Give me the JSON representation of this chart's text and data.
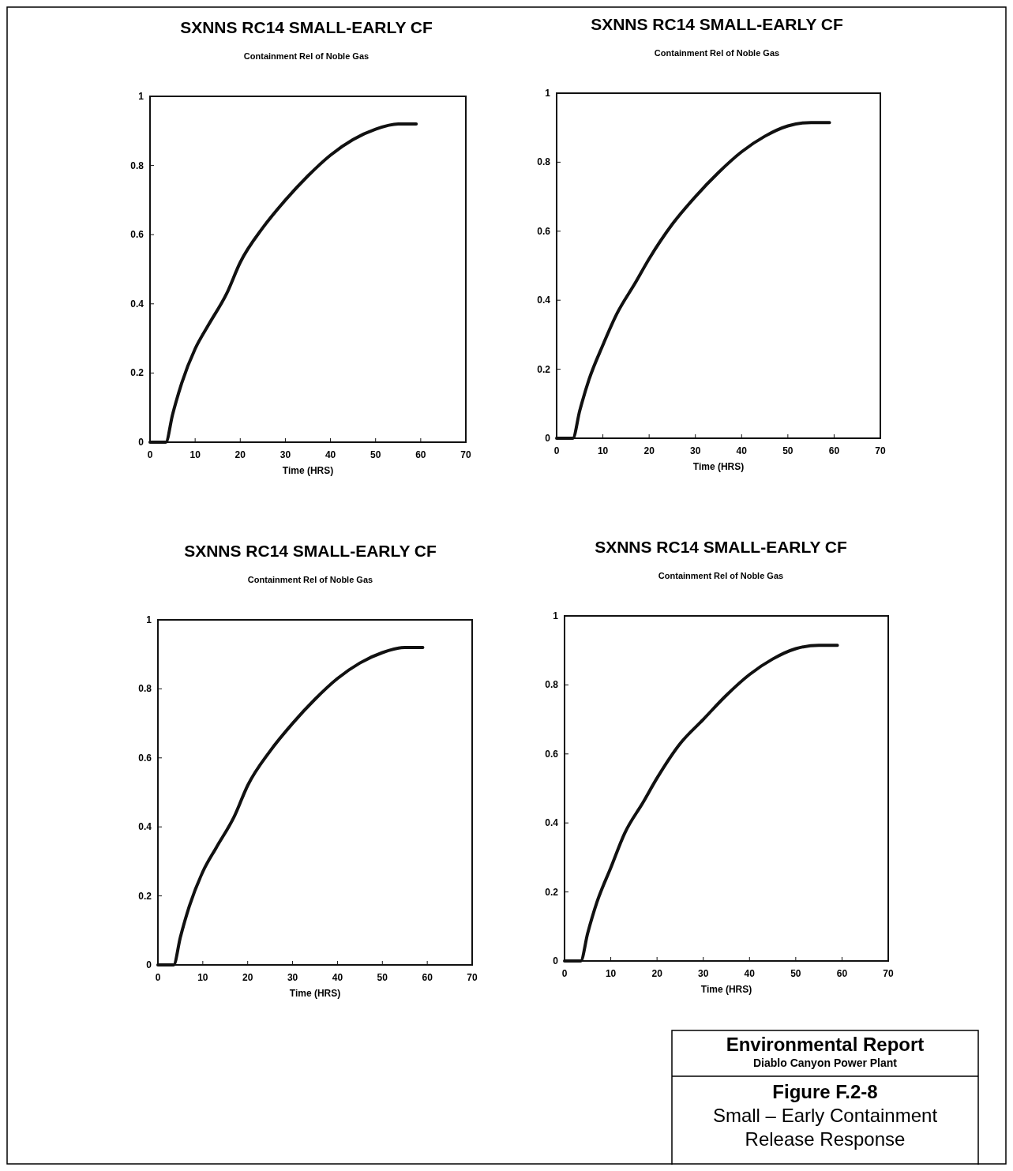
{
  "chart_data": [
    {
      "type": "line",
      "title": "SXNNS RC14 SMALL-EARLY CF",
      "subtitle": "Containment Rel of Noble Gas",
      "xlabel": "Time (HRS)",
      "xlim": [
        0,
        70
      ],
      "ylim": [
        0,
        1
      ],
      "xticks": [
        0,
        10,
        20,
        30,
        40,
        50,
        60,
        70
      ],
      "yticks": [
        0,
        0.2,
        0.4,
        0.6,
        0.8,
        1
      ],
      "grid": false,
      "marker": "none",
      "series": [
        {
          "color": "#111111",
          "x": [
            0,
            3.5,
            5,
            7,
            10,
            13,
            17,
            20,
            25,
            30,
            35,
            40,
            45,
            50,
            55,
            59
          ],
          "values": [
            0,
            0,
            0.08,
            0.17,
            0.27,
            0.34,
            0.43,
            0.52,
            0.62,
            0.7,
            0.77,
            0.83,
            0.875,
            0.905,
            0.92,
            0.92
          ]
        }
      ]
    },
    {
      "type": "line",
      "title": "SXNNS RC14 SMALL-EARLY CF",
      "subtitle": "Containment Rel of Noble Gas",
      "xlabel": "Time (HRS)",
      "xlim": [
        0,
        70
      ],
      "ylim": [
        0,
        1
      ],
      "xticks": [
        0,
        10,
        20,
        30,
        40,
        50,
        60,
        70
      ],
      "yticks": [
        0,
        0.2,
        0.4,
        0.6,
        0.8,
        1
      ],
      "grid": false,
      "marker": "none",
      "series": [
        {
          "color": "#111111",
          "x": [
            0,
            3.5,
            5,
            7,
            10,
            13,
            17,
            20,
            25,
            30,
            35,
            40,
            45,
            50,
            55,
            59
          ],
          "values": [
            0,
            0,
            0.08,
            0.17,
            0.27,
            0.36,
            0.45,
            0.52,
            0.62,
            0.7,
            0.77,
            0.83,
            0.875,
            0.905,
            0.915,
            0.915
          ]
        }
      ]
    },
    {
      "type": "line",
      "title": "SXNNS RC14 SMALL-EARLY CF",
      "subtitle": "Containment Rel of Noble Gas",
      "xlabel": "Time (HRS)",
      "xlim": [
        0,
        70
      ],
      "ylim": [
        0,
        1
      ],
      "xticks": [
        0,
        10,
        20,
        30,
        40,
        50,
        60,
        70
      ],
      "yticks": [
        0,
        0.2,
        0.4,
        0.6,
        0.8,
        1
      ],
      "grid": false,
      "marker": "none",
      "series": [
        {
          "color": "#111111",
          "x": [
            0,
            3.5,
            5,
            7,
            10,
            13,
            17,
            20,
            25,
            30,
            35,
            40,
            45,
            50,
            55,
            59
          ],
          "values": [
            0,
            0,
            0.08,
            0.17,
            0.27,
            0.34,
            0.43,
            0.52,
            0.62,
            0.7,
            0.77,
            0.83,
            0.875,
            0.905,
            0.92,
            0.92
          ]
        }
      ]
    },
    {
      "type": "line",
      "title": "SXNNS RC14 SMALL-EARLY CF",
      "subtitle": "Containment Rel of Noble Gas",
      "xlabel": "Time (HRS)",
      "xlim": [
        0,
        70
      ],
      "ylim": [
        0,
        1
      ],
      "xticks": [
        0,
        10,
        20,
        30,
        40,
        50,
        60,
        70
      ],
      "yticks": [
        0,
        0.2,
        0.4,
        0.6,
        0.8,
        1
      ],
      "grid": false,
      "marker": "none",
      "series": [
        {
          "color": "#111111",
          "x": [
            0,
            3.5,
            5,
            7,
            10,
            13,
            17,
            20,
            25,
            30,
            35,
            40,
            45,
            50,
            55,
            59
          ],
          "values": [
            0,
            0,
            0.08,
            0.17,
            0.27,
            0.37,
            0.46,
            0.53,
            0.63,
            0.7,
            0.77,
            0.83,
            0.875,
            0.905,
            0.915,
            0.915
          ]
        }
      ]
    },
    {
      "type": "other",
      "title": "Environmental Report",
      "subtitle": "Diablo Canyon Power Plant",
      "annotations": [
        "Figure F.2-8",
        "Small – Early Containment Release Response"
      ]
    }
  ]
}
